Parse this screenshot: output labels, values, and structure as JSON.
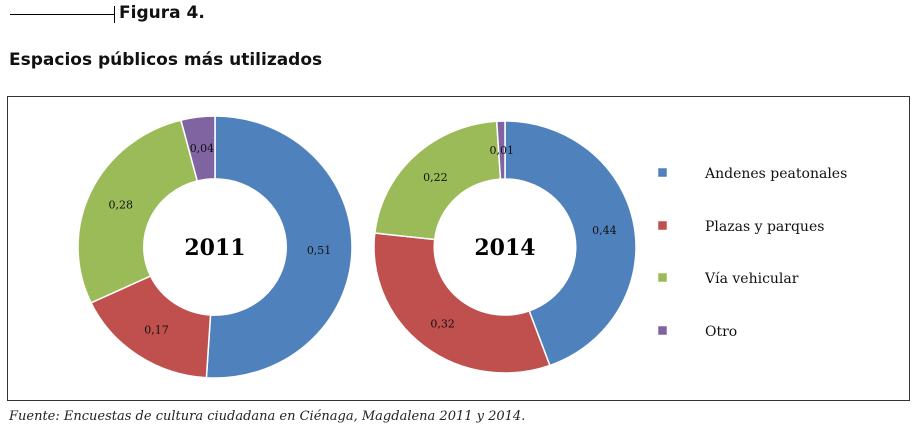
{
  "figure": {
    "label": "Figura 4.",
    "title": "Espacios públicos más utilizados",
    "source": "Fuente: Encuestas de cultura ciudadana en Ciénaga, Magdalena 2011 y 2014."
  },
  "colors": {
    "andenes": "#4f81bd",
    "plazas": "#c0504d",
    "via": "#9bbb59",
    "otro": "#8064a2"
  },
  "chart_data": [
    {
      "type": "pie",
      "hole": true,
      "center_label": "2011",
      "categories": [
        "Andenes peatonales",
        "Plazas y parques",
        "Vía vehicular",
        "Otro"
      ],
      "values": [
        0.51,
        0.17,
        0.28,
        0.04
      ],
      "value_labels": [
        "0,51",
        "0,17",
        "0,28",
        "0,04"
      ]
    },
    {
      "type": "pie",
      "hole": true,
      "center_label": "2014",
      "categories": [
        "Andenes peatonales",
        "Plazas y parques",
        "Vía vehicular",
        "Otro"
      ],
      "values": [
        0.44,
        0.32,
        0.22,
        0.01
      ],
      "value_labels": [
        "0,44",
        "0,32",
        "0,22",
        "0,01"
      ]
    }
  ],
  "legend": {
    "placement": "right",
    "items": [
      "Andenes peatonales",
      "Plazas y parques",
      "Vía vehicular",
      "Otro"
    ]
  }
}
